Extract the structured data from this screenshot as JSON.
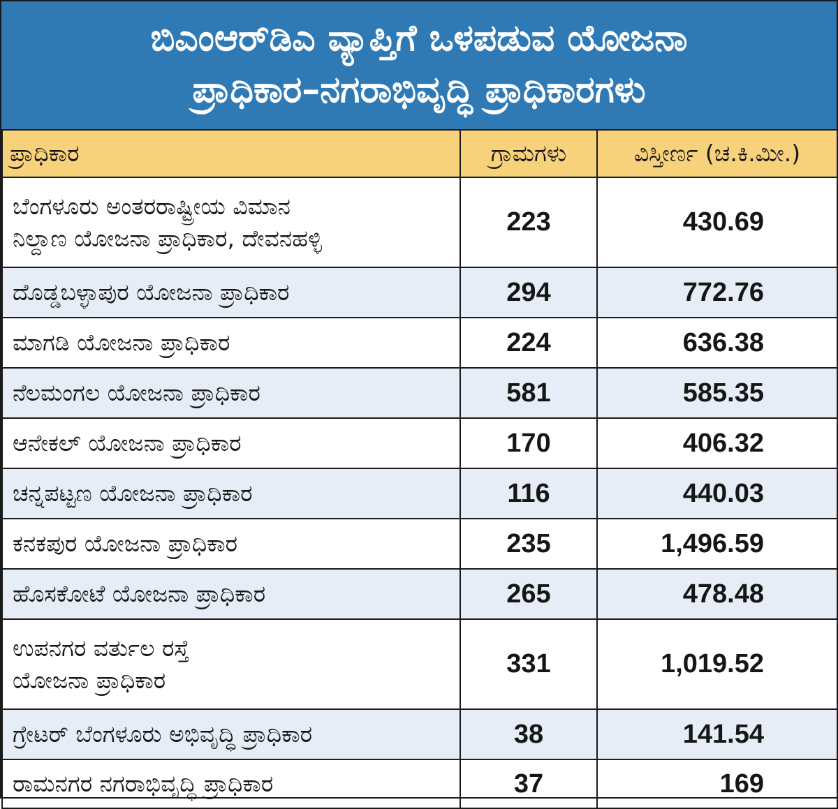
{
  "title": {
    "line1": "ಬಿಎಂಆರ್‌ಡಿಎ ವ್ಯಾಪ್ತಿಗೆ ಒಳಪಡುವ ಯೋಜನಾ",
    "line2": "ಪ್ರಾಧಿಕಾರ–ನಗರಾಭಿವೃದ್ಧಿ ಪ್ರಾಧಿಕಾರಗಳು"
  },
  "headers": {
    "authority": "ಪ್ರಾಧಿಕಾರ",
    "villages": "ಗ್ರಾಮಗಳು",
    "area": "ವಿಸ್ತೀರ್ಣ (ಚ.ಕಿ.ಮೀ.)"
  },
  "rows": [
    {
      "name_line1": "ಬೆಂಗಳೂರು ಅಂತರರಾಷ್ಟ್ರೀಯ ವಿಮಾನ",
      "name_line2": "ನಿಲ್ದಾಣ ಯೋಜನಾ ಪ್ರಾಧಿಕಾರ, ದೇವನಹಳ್ಳಿ",
      "villages": "223",
      "area": "430.69"
    },
    {
      "name_line1": "ದೊಡ್ಡಬಳ್ಳಾಪುರ ಯೋಜನಾ ಪ್ರಾಧಿಕಾರ",
      "name_line2": "",
      "villages": "294",
      "area": "772.76"
    },
    {
      "name_line1": "ಮಾಗಡಿ ಯೋಜನಾ ಪ್ರಾಧಿಕಾರ",
      "name_line2": "",
      "villages": "224",
      "area": "636.38"
    },
    {
      "name_line1": "ನೆಲಮಂಗಲ ಯೋಜನಾ ಪ್ರಾಧಿಕಾರ",
      "name_line2": "",
      "villages": "581",
      "area": "585.35"
    },
    {
      "name_line1": "ಆನೇಕಲ್ ಯೋಜನಾ ಪ್ರಾಧಿಕಾರ",
      "name_line2": "",
      "villages": "170",
      "area": "406.32"
    },
    {
      "name_line1": "ಚನ್ನಪಟ್ಟಣ ಯೋಜನಾ ಪ್ರಾಧಿಕಾರ",
      "name_line2": "",
      "villages": "116",
      "area": "440.03"
    },
    {
      "name_line1": "ಕನಕಪುರ ಯೋಜನಾ ಪ್ರಾಧಿಕಾರ",
      "name_line2": "",
      "villages": "235",
      "area": "1,496.59"
    },
    {
      "name_line1": "ಹೊಸಕೋಟೆ ಯೋಜನಾ ಪ್ರಾಧಿಕಾರ",
      "name_line2": "",
      "villages": "265",
      "area": "478.48"
    },
    {
      "name_line1": "ಉಪನಗರ ವರ್ತುಲ ರಸ್ತೆ",
      "name_line2": "ಯೋಜನಾ ಪ್ರಾಧಿಕಾರ",
      "villages": "331",
      "area": "1,019.52"
    },
    {
      "name_line1": "ಗ್ರೇಟರ್ ಬೆಂಗಳೂರು ಅಭಿವೃದ್ಧಿ ಪ್ರಾಧಿಕಾರ",
      "name_line2": "",
      "villages": "38",
      "area": "141.54"
    },
    {
      "name_line1": "ರಾಮನಗರ ನಗರಾಭಿವೃದ್ಧಿ ಪ್ರಾಧಿಕಾರ",
      "name_line2": "",
      "villages": "37",
      "area": "169"
    }
  ],
  "colors": {
    "title_bg": "#2f7ab5",
    "header_bg": "#f8d27a",
    "alt_row_bg": "#e6edf6",
    "border": "#1a1a1a"
  }
}
